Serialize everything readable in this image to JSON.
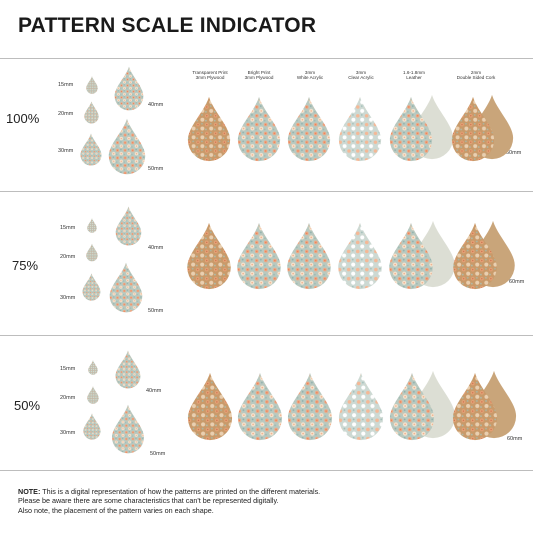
{
  "title": "PATTERN SCALE INDICATOR",
  "colors": {
    "floral_base": "#b9c9c0",
    "floral_peach": "#f1a882",
    "floral_cream": "#f6e4cf",
    "wood": "#c7935e",
    "cork": "#c9a57a",
    "leather": "#dcded4"
  },
  "materials": [
    {
      "line1": "Transparent Print",
      "line2": "3mm Plywood"
    },
    {
      "line1": "Bright Print",
      "line2": "3mm Plywood"
    },
    {
      "line1": "3mm",
      "line2": "White Acrylic"
    },
    {
      "line1": "3mm",
      "line2": "Clear Acrylic"
    },
    {
      "line1": "1.6-1.8mm",
      "line2": "Leather"
    },
    {
      "line1": "2mm",
      "line2": "Double Sided Cork"
    }
  ],
  "sizes": [
    "15mm",
    "20mm",
    "30mm",
    "40mm",
    "50mm"
  ],
  "reference_size": "60mm",
  "scales": [
    "100%",
    "75%",
    "50%"
  ],
  "note": {
    "label": "NOTE:",
    "line1": " This is a digital representation of how the patterns are printed on the different materials.",
    "line2": "Please be aware there are some characteristics that can't be represented digitally.",
    "line3": "Also note, the placement of the pattern varies on each shape."
  }
}
